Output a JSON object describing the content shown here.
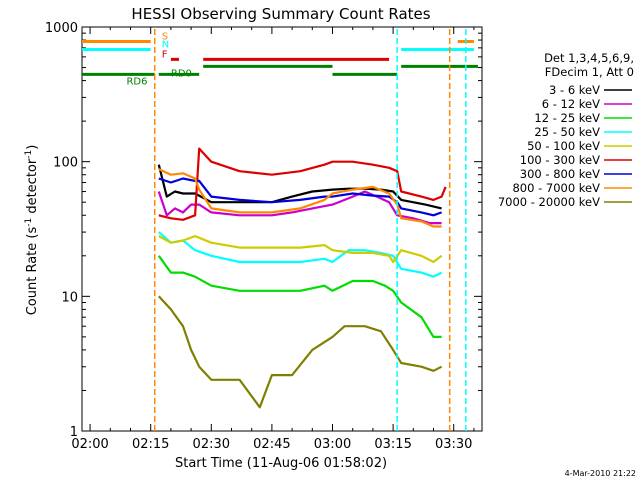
{
  "chart_data": {
    "type": "line",
    "title": "HESSI Observing Summary Count Rates",
    "xlabel": "Start Time (11-Aug-06 01:58:02)",
    "ylabel": "Count Rate (s⁻¹ detector⁻¹)",
    "y_scale": "log",
    "ylim": [
      1,
      1000
    ],
    "xlim": [
      "01:58",
      "03:37"
    ],
    "x_ticks": [
      "02:00",
      "02:15",
      "02:30",
      "02:45",
      "03:00",
      "03:15",
      "03:30"
    ],
    "y_ticks": [
      "1",
      "10",
      "100",
      "1000"
    ],
    "footer_date": "4-Mar-2010 21:22",
    "legend": {
      "header": [
        "Det 1,3,4,5,6,9,",
        "FDecim 1, Att 0"
      ],
      "placement": "right"
    },
    "series": [
      {
        "name": "3 - 6 keV",
        "color": "#000000",
        "points": [
          [
            "02:16",
            null
          ],
          [
            "02:17",
            95
          ],
          [
            "02:19",
            55
          ],
          [
            "02:21",
            60
          ],
          [
            "02:23",
            58
          ],
          [
            "02:26",
            58
          ],
          [
            "02:30",
            50
          ],
          [
            "02:37",
            50
          ],
          [
            "02:45",
            50
          ],
          [
            "02:50",
            55
          ],
          [
            "02:55",
            60
          ],
          [
            "03:00",
            62
          ],
          [
            "03:04",
            63
          ],
          [
            "03:08",
            63
          ],
          [
            "03:12",
            62
          ],
          [
            "03:15",
            60
          ],
          [
            "03:17",
            52
          ],
          [
            "03:23",
            48
          ],
          [
            "03:27",
            45
          ],
          [
            "03:28",
            null
          ]
        ]
      },
      {
        "name": "6 - 12 keV",
        "color": "#cc00cc",
        "points": [
          [
            "02:17",
            60
          ],
          [
            "02:19",
            40
          ],
          [
            "02:21",
            45
          ],
          [
            "02:23",
            42
          ],
          [
            "02:25",
            48
          ],
          [
            "02:27",
            48
          ],
          [
            "02:30",
            42
          ],
          [
            "02:37",
            40
          ],
          [
            "02:45",
            40
          ],
          [
            "02:50",
            42
          ],
          [
            "02:55",
            45
          ],
          [
            "03:00",
            48
          ],
          [
            "03:03",
            52
          ],
          [
            "03:05",
            55
          ],
          [
            "03:08",
            60
          ],
          [
            "03:11",
            55
          ],
          [
            "03:14",
            50
          ],
          [
            "03:16",
            40
          ],
          [
            "03:20",
            38
          ],
          [
            "03:24",
            35
          ],
          [
            "03:27",
            35
          ]
        ]
      },
      {
        "name": "12 - 25 keV",
        "color": "#00dd00",
        "points": [
          [
            "02:17",
            20
          ],
          [
            "02:20",
            15
          ],
          [
            "02:23",
            15
          ],
          [
            "02:26",
            14
          ],
          [
            "02:30",
            12
          ],
          [
            "02:37",
            11
          ],
          [
            "02:45",
            11
          ],
          [
            "02:52",
            11
          ],
          [
            "02:58",
            12
          ],
          [
            "03:00",
            11
          ],
          [
            "03:05",
            13
          ],
          [
            "03:10",
            13
          ],
          [
            "03:13",
            12
          ],
          [
            "03:15",
            11
          ],
          [
            "03:17",
            9
          ],
          [
            "03:22",
            7
          ],
          [
            "03:25",
            5
          ],
          [
            "03:27",
            5
          ]
        ]
      },
      {
        "name": "25 - 50 keV",
        "color": "#00ffff",
        "points": [
          [
            "02:17",
            30
          ],
          [
            "02:20",
            25
          ],
          [
            "02:23",
            26
          ],
          [
            "02:26",
            22
          ],
          [
            "02:30",
            20
          ],
          [
            "02:37",
            18
          ],
          [
            "02:45",
            18
          ],
          [
            "02:52",
            18
          ],
          [
            "02:58",
            19
          ],
          [
            "03:00",
            18
          ],
          [
            "03:04",
            22
          ],
          [
            "03:08",
            22
          ],
          [
            "03:12",
            21
          ],
          [
            "03:15",
            20
          ],
          [
            "03:17",
            16
          ],
          [
            "03:22",
            15
          ],
          [
            "03:25",
            14
          ],
          [
            "03:27",
            15
          ]
        ]
      },
      {
        "name": "50 - 100 keV",
        "color": "#cccc00",
        "points": [
          [
            "02:17",
            28
          ],
          [
            "02:20",
            25
          ],
          [
            "02:23",
            26
          ],
          [
            "02:26",
            28
          ],
          [
            "02:30",
            25
          ],
          [
            "02:37",
            23
          ],
          [
            "02:45",
            23
          ],
          [
            "02:52",
            23
          ],
          [
            "02:58",
            24
          ],
          [
            "03:00",
            22
          ],
          [
            "03:05",
            21
          ],
          [
            "03:10",
            21
          ],
          [
            "03:14",
            20
          ],
          [
            "03:15",
            18
          ],
          [
            "03:17",
            22
          ],
          [
            "03:22",
            20
          ],
          [
            "03:25",
            18
          ],
          [
            "03:27",
            20
          ]
        ]
      },
      {
        "name": "100 - 300 keV",
        "color": "#dd0000",
        "points": [
          [
            "02:17",
            40
          ],
          [
            "02:20",
            38
          ],
          [
            "02:23",
            37
          ],
          [
            "02:26",
            40
          ],
          [
            "02:27",
            125
          ],
          [
            "02:30",
            100
          ],
          [
            "02:37",
            85
          ],
          [
            "02:45",
            80
          ],
          [
            "02:52",
            85
          ],
          [
            "02:58",
            95
          ],
          [
            "03:00",
            100
          ],
          [
            "03:05",
            100
          ],
          [
            "03:10",
            95
          ],
          [
            "03:14",
            90
          ],
          [
            "03:16",
            85
          ],
          [
            "03:17",
            60
          ],
          [
            "03:22",
            55
          ],
          [
            "03:25",
            52
          ],
          [
            "03:27",
            55
          ],
          [
            "03:28",
            65
          ]
        ]
      },
      {
        "name": "300 - 800 keV",
        "color": "#0000dd",
        "points": [
          [
            "02:17",
            75
          ],
          [
            "02:20",
            70
          ],
          [
            "02:23",
            75
          ],
          [
            "02:26",
            72
          ],
          [
            "02:27",
            72
          ],
          [
            "02:30",
            55
          ],
          [
            "02:37",
            52
          ],
          [
            "02:45",
            50
          ],
          [
            "02:52",
            52
          ],
          [
            "02:58",
            55
          ],
          [
            "03:00",
            55
          ],
          [
            "03:05",
            58
          ],
          [
            "03:10",
            56
          ],
          [
            "03:14",
            55
          ],
          [
            "03:16",
            50
          ],
          [
            "03:17",
            45
          ],
          [
            "03:22",
            42
          ],
          [
            "03:25",
            40
          ],
          [
            "03:27",
            42
          ]
        ]
      },
      {
        "name": "800 - 7000 keV",
        "color": "#ff8800",
        "points": [
          [
            "02:17",
            88
          ],
          [
            "02:20",
            80
          ],
          [
            "02:23",
            82
          ],
          [
            "02:26",
            75
          ],
          [
            "02:27",
            62
          ],
          [
            "02:30",
            45
          ],
          [
            "02:37",
            42
          ],
          [
            "02:45",
            42
          ],
          [
            "02:52",
            45
          ],
          [
            "02:58",
            52
          ],
          [
            "03:00",
            58
          ],
          [
            "03:05",
            62
          ],
          [
            "03:10",
            65
          ],
          [
            "03:14",
            58
          ],
          [
            "03:16",
            48
          ],
          [
            "03:17",
            38
          ],
          [
            "03:22",
            36
          ],
          [
            "03:25",
            33
          ],
          [
            "03:27",
            33
          ]
        ]
      },
      {
        "name": "7000 - 20000 keV",
        "color": "#808000",
        "points": [
          [
            "02:17",
            10
          ],
          [
            "02:20",
            8
          ],
          [
            "02:23",
            6
          ],
          [
            "02:25",
            4
          ],
          [
            "02:27",
            3
          ],
          [
            "02:30",
            2.4
          ],
          [
            "02:37",
            2.4
          ],
          [
            "02:42",
            1.5
          ],
          [
            "02:45",
            2.6
          ],
          [
            "02:50",
            2.6
          ],
          [
            "02:55",
            4
          ],
          [
            "03:00",
            5
          ],
          [
            "03:03",
            6
          ],
          [
            "03:08",
            6
          ],
          [
            "03:12",
            5.5
          ],
          [
            "03:15",
            4
          ],
          [
            "03:17",
            3.2
          ],
          [
            "03:22",
            3
          ],
          [
            "03:25",
            2.8
          ],
          [
            "03:27",
            3
          ]
        ]
      }
    ],
    "vertical_markers": [
      {
        "time": "02:16",
        "color": "#ff8800"
      },
      {
        "time": "03:16",
        "color": "#00ffff"
      },
      {
        "time": "03:29",
        "color": "#ff8800"
      },
      {
        "time": "03:33",
        "color": "#00ffff"
      }
    ],
    "status_bars": [
      {
        "label": "S",
        "label_at": "02:17",
        "color": "#ff8800",
        "level": 780,
        "segments": [
          [
            "01:58",
            "02:15"
          ],
          [
            "03:31",
            "03:35"
          ]
        ]
      },
      {
        "label": "N",
        "label_at": "02:17",
        "color": "#00ffff",
        "level": 680,
        "segments": [
          [
            "01:58",
            "02:15"
          ],
          [
            "03:17",
            "03:35"
          ]
        ]
      },
      {
        "label": "F",
        "label_at": "02:17",
        "color": "#dd0000",
        "level": 575,
        "segments": [
          [
            "02:20",
            "02:22"
          ],
          [
            "02:28",
            "03:14"
          ]
        ]
      },
      {
        "label": "RD0",
        "label_at": "02:20",
        "color": "#008000",
        "level": 510,
        "segments": [
          [
            "02:28",
            "03:00"
          ],
          [
            "03:17",
            "03:36"
          ]
        ]
      },
      {
        "label": "RD6",
        "label_at": "02:09",
        "color": "#008000",
        "level": 445,
        "segments": [
          [
            "01:58",
            "02:16"
          ],
          [
            "02:17",
            "02:27"
          ],
          [
            "03:00",
            "03:16"
          ]
        ]
      }
    ]
  }
}
